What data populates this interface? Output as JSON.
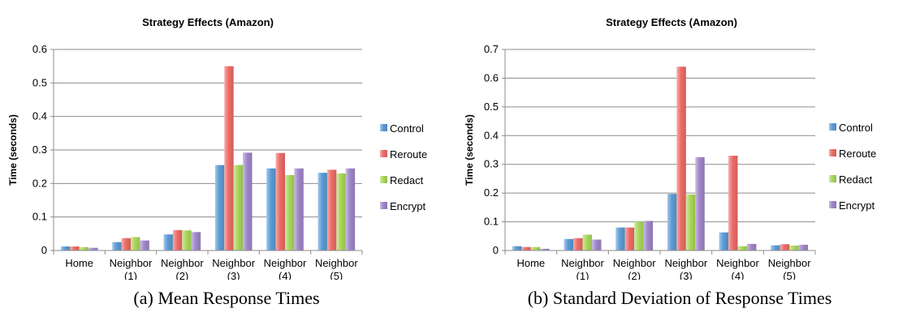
{
  "captions": [
    "(a) Mean Response Times",
    "(b) Standard Deviation of Response Times"
  ],
  "chart_data": [
    {
      "type": "bar",
      "title": "Strategy Effects (Amazon)",
      "xlabel": "",
      "ylabel": "Time (seconds)",
      "ylim": [
        0,
        0.6
      ],
      "yticks": [
        "0",
        "0.1",
        "0.2",
        "0.3",
        "0.4",
        "0.5",
        "0.6"
      ],
      "categories": [
        "Home",
        "Neighbor (1)",
        "Neighbor (2)",
        "Neighbor (3)",
        "Neighbor (4)",
        "Neighbor (5)"
      ],
      "grid": true,
      "legend": "right",
      "series": [
        {
          "name": "Control",
          "color": "#5b9bd5",
          "values": [
            0.012,
            0.025,
            0.048,
            0.255,
            0.245,
            0.232
          ]
        },
        {
          "name": "Reroute",
          "color": "#ed6b67",
          "values": [
            0.012,
            0.037,
            0.061,
            0.55,
            0.291,
            0.241
          ]
        },
        {
          "name": "Redact",
          "color": "#a9d65b",
          "values": [
            0.01,
            0.04,
            0.06,
            0.255,
            0.225,
            0.23
          ]
        },
        {
          "name": "Encrypt",
          "color": "#9f86c8",
          "values": [
            0.008,
            0.03,
            0.055,
            0.292,
            0.245,
            0.245
          ]
        }
      ]
    },
    {
      "type": "bar",
      "title": "Strategy Effects (Amazon)",
      "xlabel": "",
      "ylabel": "Time (seconds)",
      "ylim": [
        0,
        0.7
      ],
      "yticks": [
        "0",
        "0.1",
        "0.2",
        "0.3",
        "0.4",
        "0.5",
        "0.6",
        "0.7"
      ],
      "categories": [
        "Home",
        "Neighbor (1)",
        "Neighbor (2)",
        "Neighbor (3)",
        "Neighbor (4)",
        "Neighbor (5)"
      ],
      "grid": true,
      "legend": "right",
      "series": [
        {
          "name": "Control",
          "color": "#5b9bd5",
          "values": [
            0.015,
            0.04,
            0.08,
            0.197,
            0.063,
            0.018
          ]
        },
        {
          "name": "Reroute",
          "color": "#ed6b67",
          "values": [
            0.012,
            0.043,
            0.08,
            0.64,
            0.33,
            0.022
          ]
        },
        {
          "name": "Redact",
          "color": "#a9d65b",
          "values": [
            0.012,
            0.055,
            0.1,
            0.195,
            0.015,
            0.017
          ]
        },
        {
          "name": "Encrypt",
          "color": "#9f86c8",
          "values": [
            0.006,
            0.038,
            0.103,
            0.325,
            0.023,
            0.02
          ]
        }
      ]
    }
  ]
}
